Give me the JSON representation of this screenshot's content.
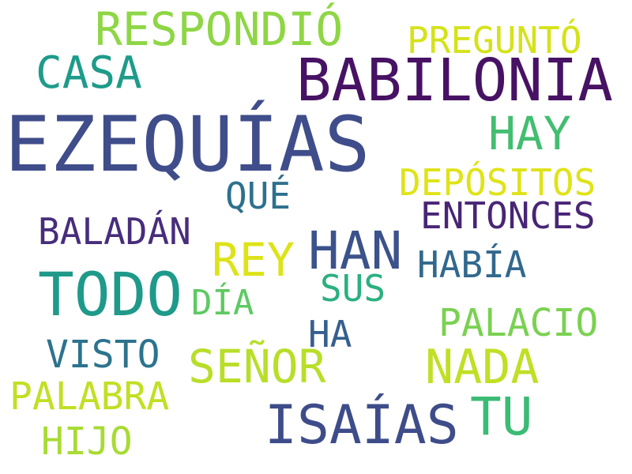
{
  "words": {
    "ezequias": {
      "text": "EZEQUÍAS",
      "color": "#3f4d8a"
    },
    "babilonia": {
      "text": "BABILONIA",
      "color": "#471264"
    },
    "todo": {
      "text": "TODO",
      "color": "#1f9a8a"
    },
    "isaias": {
      "text": "ISAÍAS",
      "color": "#3e4c8a"
    },
    "han": {
      "text": "HAN",
      "color": "#3b528b"
    },
    "respondio": {
      "text": "RESPONDIÓ",
      "color": "#8ed645"
    },
    "tu": {
      "text": "TU",
      "color": "#3bbb75"
    },
    "hay": {
      "text": "HAY",
      "color": "#42be71"
    },
    "casa": {
      "text": "CASA",
      "color": "#1e9b8a"
    },
    "rey": {
      "text": "REY",
      "color": "#dde318"
    },
    "nada": {
      "text": "NADA",
      "color": "#c0df25"
    },
    "senor": {
      "text": "SEÑOR",
      "color": "#b8de29"
    },
    "pregunto": {
      "text": "PREGUNTÓ",
      "color": "#d5e21a"
    },
    "depositos": {
      "text": "DEPÓSITOS",
      "color": "#dfe318"
    },
    "entonces": {
      "text": "ENTONCES",
      "color": "#482576"
    },
    "baladan": {
      "text": "BALADÁN",
      "color": "#472d7b"
    },
    "habia": {
      "text": "HABÍA",
      "color": "#31688e"
    },
    "palacio": {
      "text": "PALACIO",
      "color": "#7ad151"
    },
    "visto": {
      "text": "VISTO",
      "color": "#2c738e"
    },
    "palabra": {
      "text": "PALABRA",
      "color": "#c2df23"
    },
    "hijo": {
      "text": "HIJO",
      "color": "#a8db34"
    },
    "que": {
      "text": "QUÉ",
      "color": "#2d708e"
    },
    "sus": {
      "text": "SUS",
      "color": "#2ab07f"
    },
    "dia": {
      "text": "DÍA",
      "color": "#5ec962"
    },
    "ha": {
      "text": "HA",
      "color": "#355f8d"
    }
  }
}
